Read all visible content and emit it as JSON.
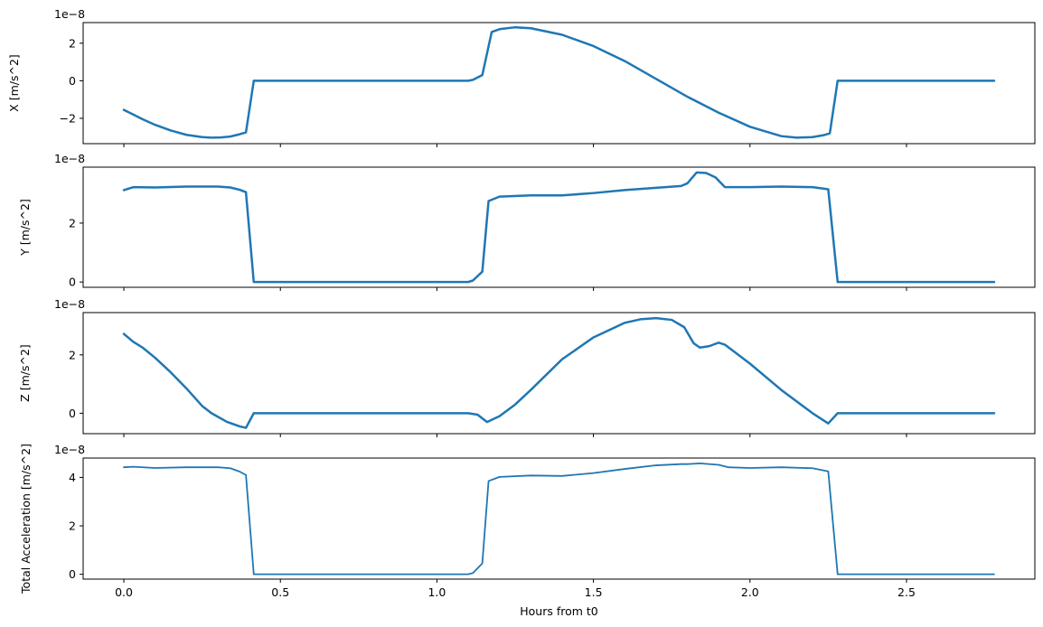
{
  "chart_data": [
    {
      "type": "line",
      "ylabel": "X [m/s^2]",
      "xlabel": "",
      "offset_label": "1e−8",
      "xlim": [
        -0.13,
        2.91
      ],
      "ylim": [
        -3.35,
        3.1
      ],
      "yticks": [
        -2,
        0,
        2
      ],
      "ytick_labels": [
        "−2",
        "0",
        "2"
      ],
      "xticks": [
        0.0,
        0.5,
        1.0,
        1.5,
        2.0,
        2.5
      ],
      "xtick_labels": [],
      "color": "#1f77b4",
      "x": [
        0.0,
        0.03,
        0.06,
        0.1,
        0.15,
        0.2,
        0.25,
        0.28,
        0.31,
        0.34,
        0.37,
        0.39,
        0.415,
        0.5,
        0.7,
        0.9,
        1.0,
        1.1,
        1.115,
        1.145,
        1.175,
        1.2,
        1.25,
        1.3,
        1.4,
        1.5,
        1.6,
        1.7,
        1.8,
        1.9,
        2.0,
        2.1,
        2.15,
        2.2,
        2.235,
        2.255,
        2.28,
        2.4,
        2.6,
        2.78
      ],
      "y": [
        -1.55,
        -1.8,
        -2.05,
        -2.35,
        -2.65,
        -2.88,
        -3.0,
        -3.03,
        -3.02,
        -2.97,
        -2.85,
        -2.75,
        0.0,
        0.0,
        0.0,
        0.0,
        0.0,
        0.0,
        0.05,
        0.3,
        2.6,
        2.75,
        2.85,
        2.8,
        2.45,
        1.85,
        1.05,
        0.1,
        -0.85,
        -1.7,
        -2.45,
        -2.95,
        -3.03,
        -3.0,
        -2.9,
        -2.8,
        0.0,
        0.0,
        0.0,
        0.0
      ]
    },
    {
      "type": "line",
      "ylabel": "Y [m/s^2]",
      "xlabel": "",
      "offset_label": "1e−8",
      "xlim": [
        -0.13,
        2.91
      ],
      "ylim": [
        -0.18,
        3.9
      ],
      "yticks": [
        0,
        2
      ],
      "ytick_labels": [
        "0",
        "2"
      ],
      "xticks": [
        0.0,
        0.5,
        1.0,
        1.5,
        2.0,
        2.5
      ],
      "xtick_labels": [],
      "color": "#1f77b4",
      "x": [
        0.0,
        0.03,
        0.1,
        0.2,
        0.3,
        0.34,
        0.37,
        0.39,
        0.415,
        0.5,
        0.7,
        0.9,
        1.0,
        1.1,
        1.115,
        1.145,
        1.165,
        1.2,
        1.3,
        1.4,
        1.5,
        1.6,
        1.7,
        1.78,
        1.8,
        1.83,
        1.86,
        1.89,
        1.92,
        2.0,
        2.1,
        2.2,
        2.25,
        2.28,
        2.5,
        2.78
      ],
      "y": [
        3.12,
        3.22,
        3.21,
        3.24,
        3.24,
        3.21,
        3.13,
        3.05,
        0.0,
        0.0,
        0.0,
        0.0,
        0.0,
        0.0,
        0.05,
        0.35,
        2.75,
        2.9,
        2.94,
        2.94,
        3.02,
        3.12,
        3.2,
        3.26,
        3.35,
        3.72,
        3.7,
        3.55,
        3.22,
        3.22,
        3.24,
        3.22,
        3.15,
        0.0,
        0.0,
        0.0
      ]
    },
    {
      "type": "line",
      "ylabel": "Z [m/s^2]",
      "xlabel": "",
      "offset_label": "1e−8",
      "xlim": [
        -0.13,
        2.91
      ],
      "ylim": [
        -0.7,
        3.45
      ],
      "yticks": [
        0,
        2
      ],
      "ytick_labels": [
        "0",
        "2"
      ],
      "xticks": [
        0.0,
        0.5,
        1.0,
        1.5,
        2.0,
        2.5
      ],
      "xtick_labels": [],
      "color": "#1f77b4",
      "x": [
        0.0,
        0.03,
        0.06,
        0.1,
        0.15,
        0.2,
        0.25,
        0.28,
        0.33,
        0.37,
        0.39,
        0.415,
        0.5,
        0.7,
        0.9,
        1.0,
        1.1,
        1.13,
        1.16,
        1.2,
        1.25,
        1.3,
        1.4,
        1.5,
        1.6,
        1.65,
        1.7,
        1.75,
        1.79,
        1.82,
        1.84,
        1.87,
        1.9,
        1.92,
        2.0,
        2.1,
        2.2,
        2.25,
        2.28,
        2.5,
        2.78
      ],
      "y": [
        2.72,
        2.45,
        2.25,
        1.9,
        1.4,
        0.85,
        0.25,
        0.0,
        -0.3,
        -0.45,
        -0.5,
        0.0,
        0.0,
        0.0,
        0.0,
        0.0,
        0.0,
        -0.05,
        -0.3,
        -0.1,
        0.3,
        0.8,
        1.85,
        2.6,
        3.1,
        3.22,
        3.26,
        3.2,
        2.95,
        2.4,
        2.25,
        2.3,
        2.42,
        2.35,
        1.7,
        0.8,
        0.0,
        -0.35,
        0.0,
        0.0,
        0.0
      ]
    },
    {
      "type": "line",
      "ylabel": "Total Acceleration [m/s^2]",
      "xlabel": "Hours from t0",
      "offset_label": "1e−8",
      "xlim": [
        -0.13,
        2.91
      ],
      "ylim": [
        -0.2,
        4.8
      ],
      "yticks": [
        0,
        2,
        4
      ],
      "ytick_labels": [
        "0",
        "2",
        "4"
      ],
      "xticks": [
        0.0,
        0.5,
        1.0,
        1.5,
        2.0,
        2.5
      ],
      "xtick_labels": [
        "0.0",
        "0.5",
        "1.0",
        "1.5",
        "2.0",
        "2.5"
      ],
      "color": "#1f77b4",
      "x": [
        0.0,
        0.03,
        0.1,
        0.2,
        0.3,
        0.34,
        0.37,
        0.39,
        0.415,
        0.5,
        0.7,
        0.9,
        1.0,
        1.1,
        1.115,
        1.145,
        1.165,
        1.2,
        1.3,
        1.4,
        1.5,
        1.6,
        1.7,
        1.78,
        1.8,
        1.84,
        1.9,
        1.93,
        2.0,
        2.1,
        2.2,
        2.25,
        2.28,
        2.5,
        2.78
      ],
      "y": [
        4.42,
        4.44,
        4.39,
        4.42,
        4.42,
        4.38,
        4.24,
        4.1,
        0.0,
        0.0,
        0.0,
        0.0,
        0.0,
        0.0,
        0.05,
        0.45,
        3.85,
        4.02,
        4.08,
        4.06,
        4.18,
        4.35,
        4.5,
        4.55,
        4.55,
        4.58,
        4.52,
        4.42,
        4.39,
        4.42,
        4.38,
        4.25,
        0.0,
        0.0,
        0.0
      ]
    }
  ]
}
